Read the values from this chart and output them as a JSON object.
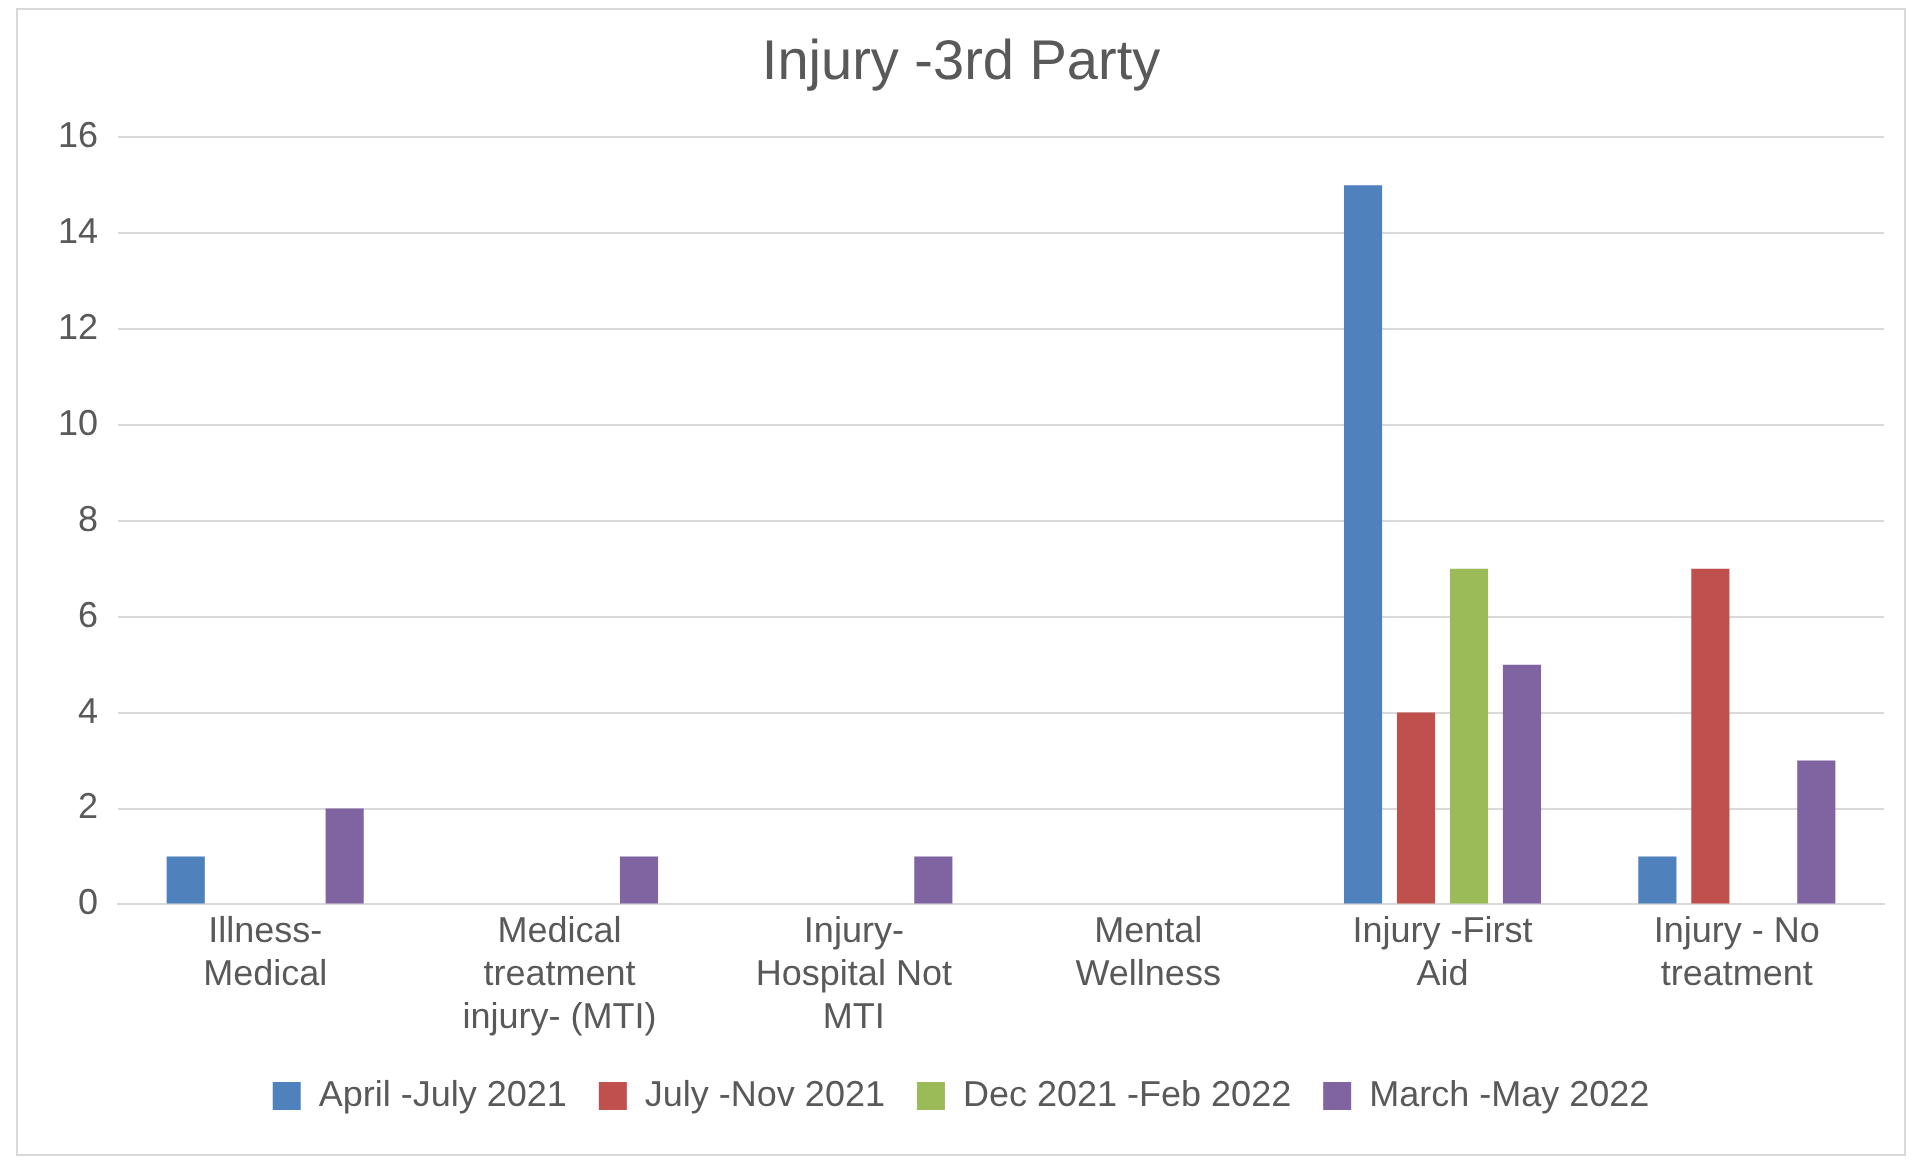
{
  "chart_data": {
    "type": "bar",
    "title": "Injury -3rd Party",
    "categories": [
      "Illness-Medical",
      "Medical treatment injury- (MTI)",
      "Injury-Hospital Not MTI",
      "Mental Wellness",
      "Injury -First Aid",
      "Injury - No treatment"
    ],
    "series": [
      {
        "name": "April -July 2021",
        "color": "#4f81bd",
        "values": [
          1,
          0,
          0,
          0,
          15,
          1
        ]
      },
      {
        "name": "July -Nov 2021",
        "color": "#c0504d",
        "values": [
          0,
          0,
          0,
          0,
          4,
          7
        ]
      },
      {
        "name": "Dec 2021 -Feb 2022",
        "color": "#9bbb59",
        "values": [
          0,
          0,
          0,
          0,
          7,
          0
        ]
      },
      {
        "name": "March -May 2022",
        "color": "#8064a2",
        "values": [
          2,
          1,
          1,
          0,
          5,
          3
        ]
      }
    ],
    "ylim": [
      0,
      16
    ],
    "yticks": [
      0,
      2,
      4,
      6,
      8,
      10,
      12,
      14,
      16
    ],
    "grid": "y",
    "legend": "bottom"
  }
}
